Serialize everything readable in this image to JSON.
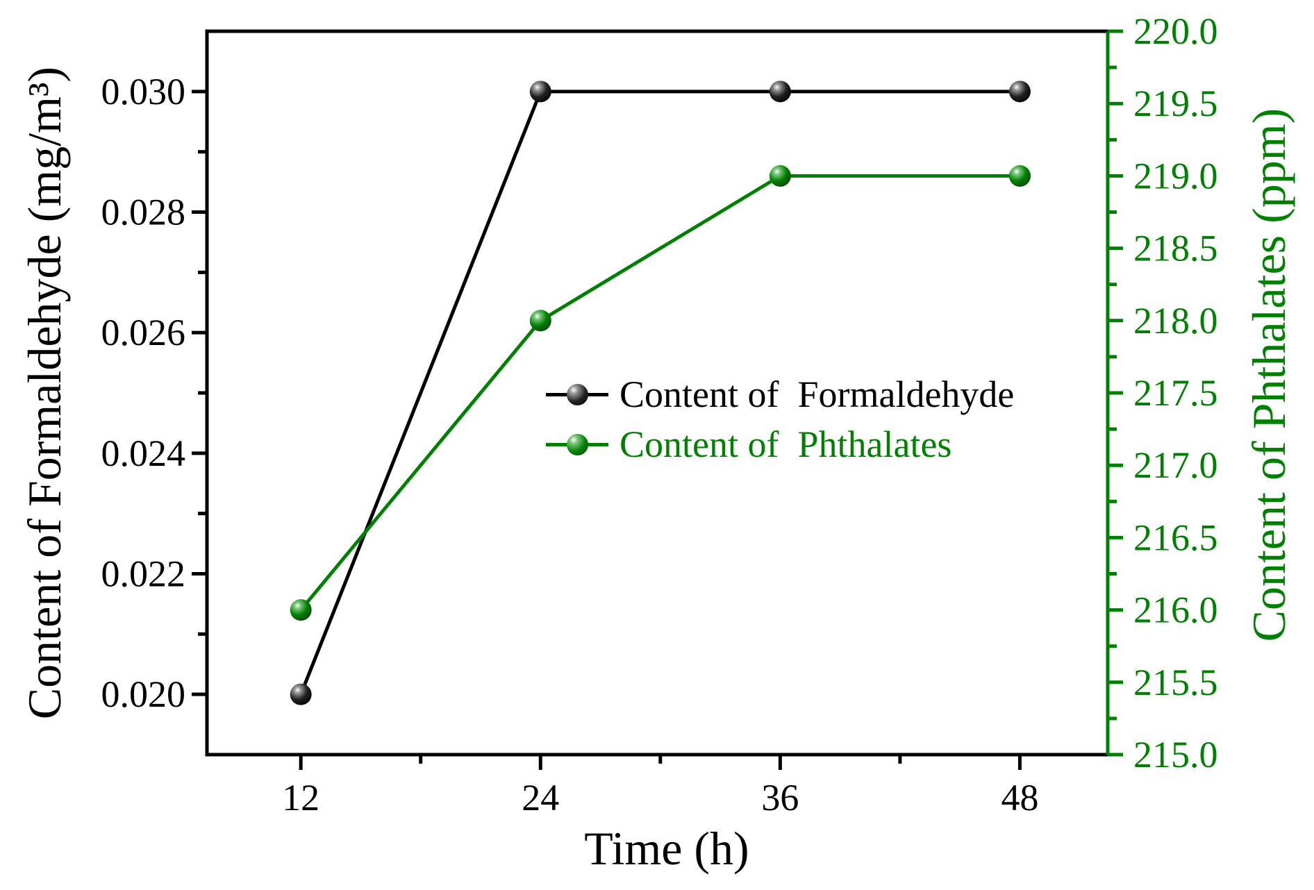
{
  "figure": {
    "background": "#ffffff"
  },
  "chart_data": {
    "type": "line",
    "title": "",
    "xlabel": "Time (h)",
    "ylabel_left": "Content of Formaldehyde (mg/m³)",
    "ylabel_right": "Content of Phthalates (ppm)",
    "grid": false,
    "x": [
      12,
      24,
      36,
      48
    ],
    "series": [
      {
        "id": "formaldehyde",
        "name": "Content of  Formaldehyde",
        "axis": "left",
        "color": "#000000",
        "marker": "3d-sphere",
        "values": [
          0.02,
          0.03,
          0.03,
          0.03
        ]
      },
      {
        "id": "phthalates",
        "name": "Content of  Phthalates",
        "axis": "right",
        "color": "#008000",
        "marker": "3d-sphere",
        "values": [
          216.0,
          218.0,
          219.0,
          219.0
        ]
      }
    ],
    "x_axis": {
      "color": "#000000",
      "range": [
        7.3,
        52.4
      ],
      "major_ticks": [
        12,
        24,
        36,
        48
      ],
      "major_labels": [
        "12",
        "24",
        "36",
        "48"
      ],
      "minor_ticks": [
        18,
        30,
        42
      ]
    },
    "left_axis": {
      "color": "#000000",
      "range": [
        0.019,
        0.031
      ],
      "major_ticks": [
        0.02,
        0.022,
        0.024,
        0.026,
        0.028,
        0.03
      ],
      "major_labels": [
        "0.020",
        "0.022",
        "0.024",
        "0.026",
        "0.028",
        "0.030"
      ],
      "minor_ticks": [
        0.021,
        0.023,
        0.025,
        0.027,
        0.029
      ]
    },
    "right_axis": {
      "color": "#008000",
      "range": [
        215.0,
        220.0
      ],
      "major_ticks": [
        215.0,
        215.5,
        216.0,
        216.5,
        217.0,
        217.5,
        218.0,
        218.5,
        219.0,
        219.5,
        220.0
      ],
      "major_labels": [
        "215.0",
        "215.5",
        "216.0",
        "216.5",
        "217.0",
        "217.5",
        "218.0",
        "218.5",
        "219.0",
        "219.5",
        "220.0"
      ],
      "minor_ticks": [
        215.25,
        215.75,
        216.25,
        216.75,
        217.25,
        217.75,
        218.25,
        218.75,
        219.25,
        219.75
      ]
    },
    "legend": {
      "position": "center",
      "items": [
        {
          "label": "Content of  Formaldehyde",
          "color": "#000000"
        },
        {
          "label": "Content of  Phthalates",
          "color": "#008000"
        }
      ]
    }
  }
}
